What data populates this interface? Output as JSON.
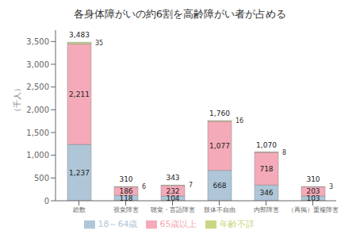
{
  "chart_data": {
    "type": "bar",
    "title": "各身体障がいの約6割を高齢障がい者が占める",
    "ylabel": "（千人）",
    "categories": [
      "総数",
      "視覚障害",
      "聴覚・言語障害",
      "肢体不自由",
      "内部障害",
      "（再掲）重複障害"
    ],
    "series": [
      {
        "name": "18～64歳",
        "color": "#aec6d8",
        "values": [
          1237,
          118,
          104,
          668,
          346,
          103
        ],
        "value_labels": [
          "1,237",
          "118",
          "104",
          "668",
          "346",
          "103"
        ]
      },
      {
        "name": "65歳以上",
        "color": "#f4aab8",
        "values": [
          2211,
          186,
          232,
          1077,
          718,
          203
        ],
        "value_labels": [
          "2,211",
          "186",
          "232",
          "1,077",
          "718",
          "203"
        ]
      },
      {
        "name": "年齢不詳",
        "color": "#c8d882",
        "values": [
          35,
          6,
          7,
          16,
          8,
          3
        ]
      }
    ],
    "totals": [
      3483,
      310,
      343,
      1760,
      1070,
      310
    ],
    "total_labels": [
      "3,483",
      "310",
      "343",
      "1,760",
      "1,070",
      "310"
    ],
    "ylim": [
      0,
      3750
    ],
    "yticks": [
      0,
      500,
      {
        "value": 1000,
        "label": "1,000"
      },
      {
        "value": 1500,
        "label": "1,500"
      },
      {
        "value": 2000,
        "label": "2,000"
      },
      {
        "value": 2500,
        "label": "2,500"
      },
      {
        "value": 3000,
        "label": "3,000"
      },
      {
        "value": 3500,
        "label": "3,500"
      }
    ],
    "stacked": true,
    "data_labels": true,
    "legend": "bottom",
    "grid": false
  }
}
